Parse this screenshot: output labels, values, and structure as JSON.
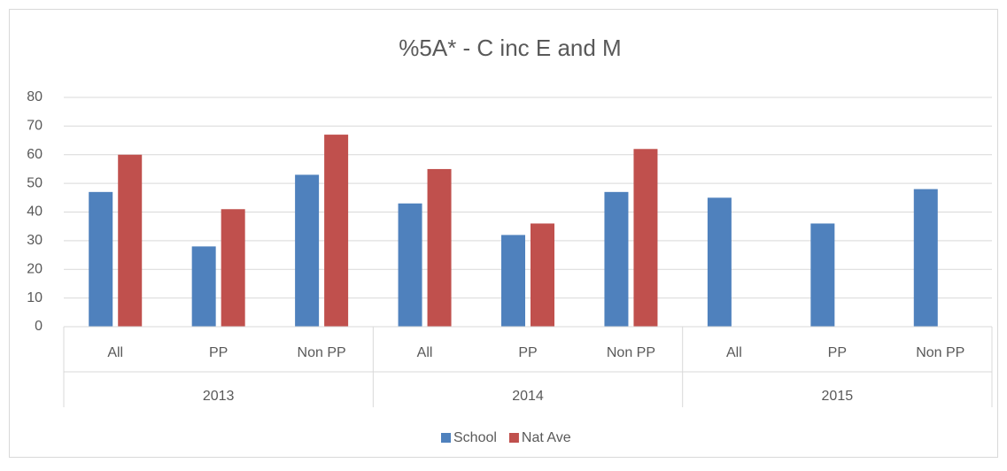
{
  "chart_data": {
    "type": "bar",
    "title": "%5A* - C inc E and M",
    "categories": [
      "All",
      "PP",
      "Non PP",
      "All",
      "PP",
      "Non PP",
      "All",
      "PP",
      "Non PP"
    ],
    "groups": [
      "2013",
      "2014",
      "2015"
    ],
    "series": [
      {
        "name": "School",
        "color": "#4f81bd",
        "values": [
          47,
          28,
          53,
          43,
          32,
          47,
          45,
          36,
          48
        ]
      },
      {
        "name": "Nat Ave",
        "color": "#c0504d",
        "values": [
          60,
          41,
          67,
          55,
          36,
          62,
          null,
          null,
          null
        ]
      }
    ],
    "ylim": [
      0,
      80
    ],
    "yticks": [
      0,
      10,
      20,
      30,
      40,
      50,
      60,
      70,
      80
    ],
    "grid": true,
    "legend": "bottom"
  }
}
